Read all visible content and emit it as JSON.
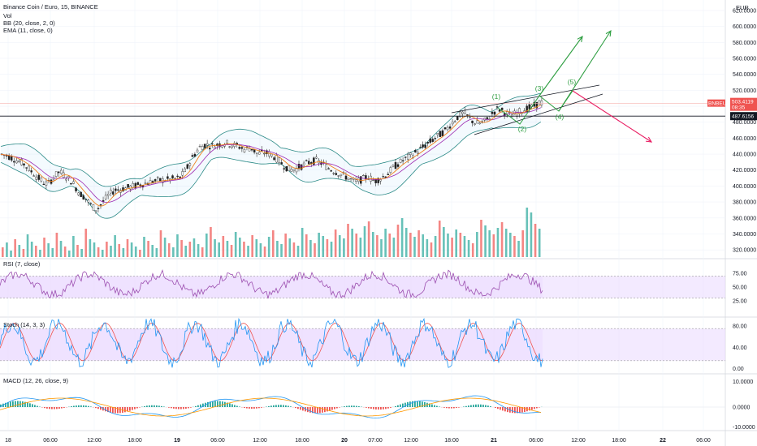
{
  "legend": {
    "title": "Binance Coin / Euro, 15, BINANCE",
    "vol": "Vol",
    "bb": "BB (20, close, 2, 0)",
    "ema": "EMA (11, close, 0)"
  },
  "currency": "EUR",
  "price_badges": {
    "ticker": "BNBEUR",
    "last_price": "503.4119",
    "countdown": "08:35",
    "hline_price": "487.6156"
  },
  "panes": {
    "rsi_label": "RSI (7, close)",
    "stoch_label": "Stoch (14, 3, 3)",
    "macd_label": "MACD (12, 26, close, 9)"
  },
  "wave_labels": [
    "(1)",
    "(2)",
    "(3)",
    "(4)",
    "(5)"
  ],
  "colors": {
    "up": "#26a69a",
    "down": "#ef5350",
    "bb": "#2b8a87",
    "ema": "#ef7f1a",
    "sma": "#9c27b0",
    "wave": "#2e9e41",
    "bear_arrow": "#e91e63",
    "osc_line": "#9c4fb0",
    "osc_fill": "#e8d6ff"
  },
  "chart_data": {
    "type": "candlestick",
    "symbol": "BNBEUR",
    "exchange": "BINANCE",
    "interval": "15",
    "price_axis_ticks": [
      "620.0000",
      "600.0000",
      "580.0000",
      "560.0000",
      "540.0000",
      "520.0000",
      "500.0000",
      "480.0000",
      "460.0000",
      "440.0000",
      "420.0000",
      "400.0000",
      "380.0000",
      "360.0000",
      "340.0000",
      "320.0000"
    ],
    "price_range": [
      310,
      625
    ],
    "time_axis_ticks": [
      "18",
      "06:00",
      "12:00",
      "18:00",
      "19",
      "06:00",
      "12:00",
      "18:00",
      "20",
      "07:00",
      "12:00",
      "18:00",
      "21",
      "06:00",
      "12:00",
      "18:00",
      "22",
      "06:00"
    ],
    "bold_time_ticks": [
      "19",
      "20",
      "21",
      "22"
    ],
    "close_path": [
      [
        0,
        440
      ],
      [
        8,
        438
      ],
      [
        18,
        433
      ],
      [
        28,
        428
      ],
      [
        36,
        420
      ],
      [
        44,
        412
      ],
      [
        52,
        405
      ],
      [
        58,
        402
      ],
      [
        64,
        410
      ],
      [
        72,
        418
      ],
      [
        80,
        412
      ],
      [
        88,
        405
      ],
      [
        96,
        392
      ],
      [
        104,
        385
      ],
      [
        112,
        375
      ],
      [
        118,
        370
      ],
      [
        124,
        378
      ],
      [
        132,
        388
      ],
      [
        140,
        395
      ],
      [
        148,
        396
      ],
      [
        156,
        398
      ],
      [
        164,
        400
      ],
      [
        172,
        402
      ],
      [
        180,
        404
      ],
      [
        188,
        406
      ],
      [
        196,
        407
      ],
      [
        204,
        408
      ],
      [
        212,
        409
      ],
      [
        220,
        410
      ],
      [
        228,
        420
      ],
      [
        236,
        436
      ],
      [
        244,
        448
      ],
      [
        252,
        452
      ],
      [
        260,
        450
      ],
      [
        268,
        452
      ],
      [
        276,
        454
      ],
      [
        284,
        452
      ],
      [
        292,
        450
      ],
      [
        300,
        446
      ],
      [
        308,
        448
      ],
      [
        316,
        440
      ],
      [
        324,
        442
      ],
      [
        332,
        440
      ],
      [
        340,
        434
      ],
      [
        348,
        426
      ],
      [
        356,
        420
      ],
      [
        364,
        422
      ],
      [
        372,
        426
      ],
      [
        380,
        430
      ],
      [
        388,
        432
      ],
      [
        396,
        428
      ],
      [
        404,
        422
      ],
      [
        412,
        418
      ],
      [
        420,
        414
      ],
      [
        428,
        410
      ],
      [
        436,
        405
      ],
      [
        444,
        408
      ],
      [
        452,
        412
      ],
      [
        460,
        406
      ],
      [
        468,
        410
      ],
      [
        476,
        415
      ],
      [
        484,
        424
      ],
      [
        492,
        430
      ],
      [
        500,
        435
      ],
      [
        508,
        440
      ],
      [
        516,
        446
      ],
      [
        524,
        452
      ],
      [
        532,
        458
      ],
      [
        540,
        464
      ],
      [
        548,
        470
      ],
      [
        556,
        480
      ],
      [
        564,
        488
      ],
      [
        570,
        492
      ],
      [
        576,
        486
      ],
      [
        582,
        480
      ],
      [
        588,
        478
      ],
      [
        594,
        480
      ],
      [
        600,
        484
      ],
      [
        606,
        492
      ],
      [
        612,
        497
      ],
      [
        618,
        494
      ],
      [
        624,
        490
      ],
      [
        630,
        489
      ],
      [
        636,
        492
      ],
      [
        642,
        495
      ],
      [
        648,
        497
      ],
      [
        654,
        499
      ],
      [
        660,
        502
      ],
      [
        664,
        506
      ],
      [
        668,
        503
      ]
    ],
    "volume": [
      12,
      18,
      8,
      22,
      15,
      10,
      28,
      19,
      14,
      9,
      24,
      17,
      11,
      30,
      20,
      13,
      8,
      26,
      15,
      10,
      35,
      22,
      18,
      12,
      9,
      19,
      14,
      27,
      16,
      11,
      22,
      18,
      13,
      9,
      25,
      20,
      15,
      11,
      33,
      24,
      17,
      12,
      28,
      21,
      14,
      19,
      23,
      16,
      12,
      29,
      37,
      22,
      18,
      26,
      20,
      15,
      31,
      24,
      19,
      14,
      27,
      22,
      17,
      13,
      25,
      33,
      20,
      16,
      29,
      23,
      18,
      14,
      36,
      28,
      21,
      17,
      30,
      26,
      22,
      19,
      34,
      27,
      23,
      41,
      35,
      29,
      24,
      38,
      44,
      31,
      27,
      22,
      35,
      29,
      24,
      40,
      48,
      36,
      30,
      25,
      33,
      28,
      22,
      18,
      26,
      45,
      37,
      29,
      24,
      34,
      30,
      26,
      21,
      17,
      31,
      46,
      39,
      33,
      28,
      36,
      43,
      35,
      30,
      26,
      20,
      33,
      61,
      55,
      41,
      35
    ],
    "rsi_levels": [
      70,
      30
    ],
    "rsi_ticks": [
      "75.00",
      "50.00",
      "25.00"
    ],
    "stoch_levels": [
      80,
      20
    ],
    "stoch_ticks": [
      "80.00",
      "40.00",
      "0.00"
    ],
    "macd_ticks": [
      "10.0000",
      "0.0000",
      "-10.0000"
    ],
    "annotations": {
      "support_line_price": 487.6156,
      "channel": "rising wedge / channel from ~12:00 on 20 to 12:00 on 21",
      "wave_count": [
        "(1)",
        "(2)",
        "(3)",
        "(4)",
        "(5)"
      ],
      "bullish_targets": [
        "~600",
        "~620"
      ],
      "bearish_target": "~455"
    }
  }
}
